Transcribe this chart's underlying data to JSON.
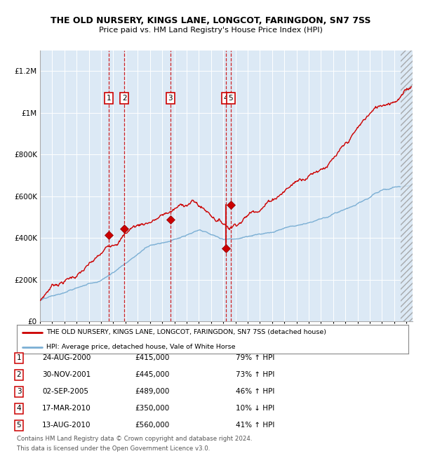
{
  "title1": "THE OLD NURSERY, KINGS LANE, LONGCOT, FARINGDON, SN7 7SS",
  "title2": "Price paid vs. HM Land Registry's House Price Index (HPI)",
  "plot_bg_color": "#dce9f5",
  "red_line_color": "#cc0000",
  "blue_line_color": "#7bafd4",
  "grid_color": "#ffffff",
  "ylim": [
    0,
    1300000
  ],
  "yticks": [
    0,
    200000,
    400000,
    600000,
    800000,
    1000000,
    1200000
  ],
  "ytick_labels": [
    "£0",
    "£200K",
    "£400K",
    "£600K",
    "£800K",
    "£1M",
    "£1.2M"
  ],
  "transactions": [
    {
      "num": 1,
      "date_x": 2000.648,
      "price": 415000,
      "label": "1"
    },
    {
      "num": 2,
      "date_x": 2001.914,
      "price": 445000,
      "label": "2"
    },
    {
      "num": 3,
      "date_x": 2005.671,
      "price": 489000,
      "label": "3"
    },
    {
      "num": 4,
      "date_x": 2010.206,
      "price": 350000,
      "label": "4"
    },
    {
      "num": 5,
      "date_x": 2010.617,
      "price": 560000,
      "label": "5"
    }
  ],
  "legend_red_label": "THE OLD NURSERY, KINGS LANE, LONGCOT, FARINGDON, SN7 7SS (detached house)",
  "legend_blue_label": "HPI: Average price, detached house, Vale of White Horse",
  "footer1": "Contains HM Land Registry data © Crown copyright and database right 2024.",
  "footer2": "This data is licensed under the Open Government Licence v3.0.",
  "xmin": 1995.0,
  "xmax": 2025.5,
  "trans_data": [
    [
      "1",
      "24-AUG-2000",
      "£415,000",
      "79% ↑ HPI"
    ],
    [
      "2",
      "30-NOV-2001",
      "£445,000",
      "73% ↑ HPI"
    ],
    [
      "3",
      "02-SEP-2005",
      "£489,000",
      "46% ↑ HPI"
    ],
    [
      "4",
      "17-MAR-2010",
      "£350,000",
      "10% ↓ HPI"
    ],
    [
      "5",
      "13-AUG-2010",
      "£560,000",
      "41% ↑ HPI"
    ]
  ]
}
